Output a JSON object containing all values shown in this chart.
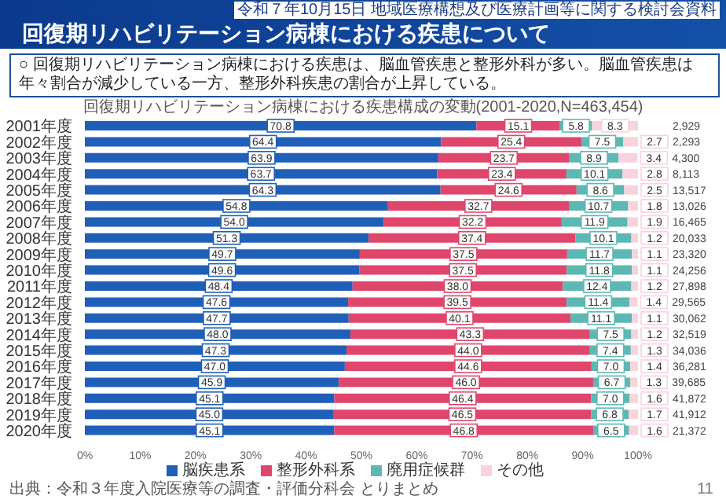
{
  "chart_data": {
    "type": "bar",
    "orientation": "horizontal",
    "stacked": true,
    "title": "回復期リハビリテーション病棟における疾患について",
    "subtitle": "回復期リハビリテーション病棟における疾患構成の変動(2001-2020,N=463,454)",
    "annotations": [
      "令和７年10月15日 地域医療構想及び医療計画等に関する検討会資料",
      "○ 回復期リハビリテーション病棟における疾患は、脳血管疾患と整形外科が多い。脳血管疾患は年々割合が減少している一方、整形外科疾患の割合が上昇している。",
      "出典：令和３年度入院医療等の調査・評価分科会 とりまとめ",
      "11",
      "2,929",
      "2,293",
      "4,300",
      "8,113",
      "13,517",
      "13,026",
      "16,465",
      "20,033",
      "23,320",
      "24,256",
      "27,898",
      "29,565",
      "30,062",
      "32,519",
      "34,036",
      "36,281",
      "39,685",
      "41,872",
      "41,912",
      "21,372"
    ],
    "categories": [
      "2001年度",
      "2002年度",
      "2003年度",
      "2004年度",
      "2005年度",
      "2006年度",
      "2007年度",
      "2008年度",
      "2009年度",
      "2010年度",
      "2011年度",
      "2012年度",
      "2013年度",
      "2014年度",
      "2015年度",
      "2016年度",
      "2017年度",
      "2018年度",
      "2019年度",
      "2020年度"
    ],
    "series": [
      {
        "name": "脳疾患系",
        "color": "#1f5fb8",
        "values": [
          70.8,
          64.4,
          63.9,
          63.7,
          64.3,
          54.8,
          54.0,
          51.3,
          49.7,
          49.6,
          48.4,
          47.6,
          47.7,
          48.0,
          47.3,
          47.0,
          45.9,
          45.1,
          45.0,
          45.1
        ],
        "value_labels": [
          "70.8",
          "64.4",
          "63.9",
          "63.7",
          "64.3",
          "54.8",
          "54.0",
          "51.3",
          "49.7",
          "49.6",
          "48.4",
          "47.6",
          "47.7",
          "48.0",
          "47.3",
          "47.0",
          "45.9",
          "45.1",
          "45.0",
          "45.1"
        ]
      },
      {
        "name": "整形外科系",
        "color": "#e0466c",
        "values": [
          15.1,
          25.4,
          23.7,
          23.4,
          24.6,
          32.7,
          32.2,
          37.4,
          37.5,
          37.5,
          38.0,
          39.5,
          40.1,
          43.3,
          44.0,
          44.6,
          46.0,
          46.4,
          46.5,
          46.8
        ],
        "value_labels": [
          "15.1",
          "25.4",
          "23.7",
          "23.4",
          "24.6",
          "32.7",
          "32.2",
          "37.4",
          "37.5",
          "37.5",
          "38.0",
          "39.5",
          "40.1",
          "43.3",
          "44.0",
          "44.6",
          "46.0",
          "46.4",
          "46.5",
          "46.8"
        ]
      },
      {
        "name": "廃用症候群",
        "color": "#5db8b3",
        "values": [
          5.8,
          7.5,
          8.9,
          10.1,
          8.6,
          10.7,
          11.9,
          10.1,
          11.7,
          11.8,
          12.4,
          11.4,
          11.1,
          7.5,
          7.4,
          7.0,
          6.7,
          7.0,
          6.8,
          6.5
        ],
        "value_labels": [
          "5.8",
          "7.5",
          "8.9",
          "10.1",
          "8.6",
          "10.7",
          "11.9",
          "10.1",
          "11.7",
          "11.8",
          "12.4",
          "11.4",
          "11.1",
          "7.5",
          "7.4",
          "7.0",
          "6.7",
          "7.0",
          "6.8",
          "6.5"
        ]
      },
      {
        "name": "その他",
        "color": "#f9d3dc",
        "values": [
          8.3,
          2.7,
          3.4,
          2.8,
          2.5,
          1.8,
          1.9,
          1.2,
          1.1,
          1.1,
          1.2,
          1.4,
          1.1,
          1.2,
          1.3,
          1.4,
          1.3,
          1.6,
          1.7,
          1.6
        ],
        "value_labels": [
          "8.3",
          "2.7",
          "3.4",
          "2.8",
          "2.5",
          "1.8",
          "1.9",
          "1.2",
          "1.1",
          "1.1",
          "1.2",
          "1.4",
          "1.1",
          "1.2",
          "1.3",
          "1.4",
          "1.3",
          "1.6",
          "1.7",
          "1.6"
        ]
      }
    ],
    "xlim": [
      0,
      100
    ],
    "xticks": [
      {
        "value": 0,
        "label": "0%"
      },
      {
        "value": 10,
        "label": "10%"
      },
      {
        "value": 20,
        "label": "20%"
      },
      {
        "value": 30,
        "label": "30%"
      },
      {
        "value": 40,
        "label": "40%"
      },
      {
        "value": 50,
        "label": "50%"
      },
      {
        "value": 60,
        "label": "60%"
      },
      {
        "value": 70,
        "label": "70%"
      },
      {
        "value": 80,
        "label": "80%"
      },
      {
        "value": 90,
        "label": "90%"
      },
      {
        "value": 100,
        "label": "100%"
      }
    ],
    "legend": "bottom"
  }
}
